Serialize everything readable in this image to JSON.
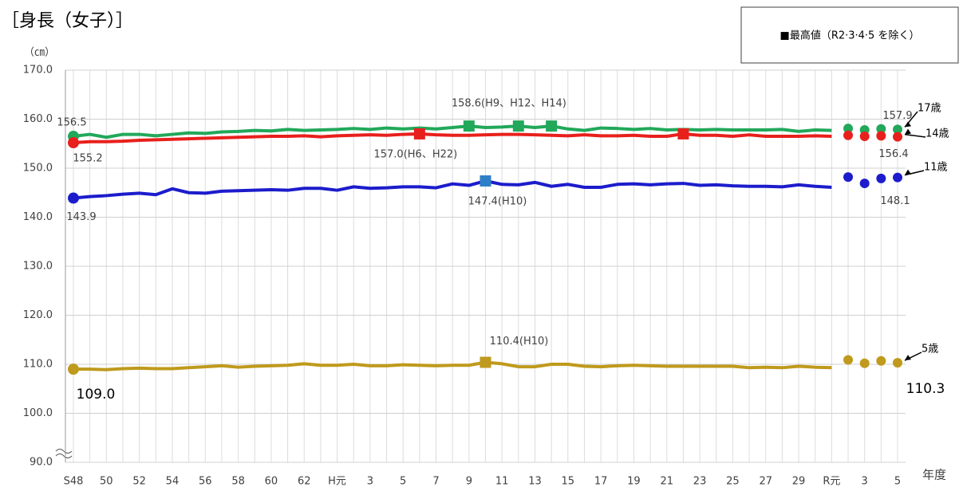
{
  "chart_data": {
    "type": "line",
    "title": "［身長（女子）］",
    "note": "■最高値（R2·3·4·5 を除く）",
    "y_unit": "（㎝）",
    "x_label": "年度",
    "categories": [
      "S48",
      null,
      "50",
      null,
      "52",
      null,
      "54",
      null,
      "56",
      null,
      "58",
      null,
      "60",
      null,
      "62",
      null,
      "H元",
      null,
      "3",
      null,
      "5",
      null,
      "7",
      null,
      "9",
      null,
      "11",
      null,
      "13",
      null,
      "15",
      null,
      "17",
      null,
      "19",
      null,
      "21",
      null,
      "23",
      null,
      "25",
      null,
      "27",
      null,
      "29",
      null,
      "R元",
      null,
      "3",
      null,
      "5"
    ],
    "ylim": [
      90,
      170
    ],
    "yticks": [
      {
        "value": 90,
        "label": "90.0"
      },
      {
        "value": 100,
        "label": "100.0"
      },
      {
        "value": 110,
        "label": "110.0"
      },
      {
        "value": 120,
        "label": "120.0"
      },
      {
        "value": 130,
        "label": "130.0"
      },
      {
        "value": 140,
        "label": "140.0"
      },
      {
        "value": 150,
        "label": "150.0"
      },
      {
        "value": 160,
        "label": "160.0"
      },
      {
        "value": 170,
        "label": "170.0"
      }
    ],
    "grid": true,
    "series": [
      {
        "name": "17歳",
        "color": "#22a85a",
        "style": "line",
        "max_label": "158.6(H9、H12、H14)",
        "values": [
          156.5,
          156.9,
          156.3,
          156.9,
          156.9,
          156.6,
          156.9,
          157.2,
          157.1,
          157.4,
          157.5,
          157.7,
          157.6,
          157.9,
          157.7,
          157.8,
          157.9,
          158.1,
          157.9,
          158.2,
          158.0,
          158.2,
          158.0,
          158.3,
          158.6,
          158.3,
          158.4,
          158.6,
          158.3,
          158.6,
          158.0,
          157.7,
          158.2,
          158.1,
          157.9,
          158.1,
          157.8,
          157.9,
          157.8,
          157.9,
          157.8,
          157.8,
          157.8,
          157.9,
          157.5,
          157.8,
          157.7,
          null,
          null,
          null,
          null
        ]
      },
      {
        "name": "14歳",
        "color": "#e8201c",
        "style": "line",
        "max_label": "157.0(H6、H22)",
        "values": [
          155.2,
          155.4,
          155.4,
          155.5,
          155.7,
          155.8,
          155.9,
          156.0,
          156.1,
          156.2,
          156.3,
          156.4,
          156.5,
          156.5,
          156.6,
          156.4,
          156.6,
          156.7,
          156.8,
          156.7,
          156.9,
          157.0,
          156.8,
          156.7,
          156.7,
          156.8,
          156.9,
          156.9,
          156.8,
          156.7,
          156.6,
          156.8,
          156.6,
          156.6,
          156.7,
          156.5,
          156.5,
          157.0,
          156.7,
          156.7,
          156.5,
          156.8,
          156.5,
          156.5,
          156.5,
          156.6,
          156.5,
          null,
          null,
          null,
          null
        ]
      },
      {
        "name": "11歳",
        "color": "#1c1ccc",
        "style": "line",
        "max_label": "147.4(H10)",
        "values": [
          143.9,
          144.2,
          144.4,
          144.7,
          144.9,
          144.6,
          145.8,
          145.0,
          144.9,
          145.3,
          145.4,
          145.5,
          145.6,
          145.5,
          145.9,
          145.9,
          145.5,
          146.2,
          145.9,
          146.0,
          146.2,
          146.2,
          146.0,
          146.8,
          146.5,
          147.4,
          146.7,
          146.6,
          147.1,
          146.3,
          146.7,
          146.1,
          146.1,
          146.7,
          146.8,
          146.6,
          146.8,
          146.9,
          146.5,
          146.6,
          146.4,
          146.3,
          146.3,
          146.2,
          146.6,
          146.3,
          146.1,
          null,
          null,
          null,
          null
        ]
      },
      {
        "name": "5歳",
        "color": "#bf9a1c",
        "style": "line",
        "max_label": "110.4(H10)",
        "values": [
          109.0,
          109.0,
          108.9,
          109.1,
          109.2,
          109.1,
          109.1,
          109.3,
          109.5,
          109.7,
          109.4,
          109.6,
          109.7,
          109.8,
          110.1,
          109.8,
          109.8,
          110.0,
          109.7,
          109.7,
          109.9,
          109.8,
          109.7,
          109.8,
          109.8,
          110.4,
          110.1,
          109.5,
          109.5,
          110.0,
          110.0,
          109.6,
          109.5,
          109.7,
          109.8,
          109.7,
          109.6,
          109.6,
          109.6,
          109.6,
          109.6,
          109.3,
          109.4,
          109.3,
          109.6,
          109.4,
          109.3,
          null,
          null,
          null,
          null
        ],
        "value_labels": [
          "109.0",
          null,
          null,
          null,
          null,
          null,
          null,
          null,
          null,
          null,
          null,
          null,
          null,
          null,
          null,
          null,
          null,
          null,
          null,
          null,
          null,
          null,
          null,
          null,
          null,
          null,
          null,
          null,
          null,
          null,
          null,
          null,
          null,
          null,
          null,
          null,
          null,
          null,
          null,
          null,
          null,
          null,
          null,
          null,
          null,
          null,
          null,
          null,
          null,
          null,
          null
        ]
      },
      {
        "color": "#22a85a",
        "style": "dots",
        "values": [
          null,
          null,
          null,
          null,
          null,
          null,
          null,
          null,
          null,
          null,
          null,
          null,
          null,
          null,
          null,
          null,
          null,
          null,
          null,
          null,
          null,
          null,
          null,
          null,
          null,
          null,
          null,
          null,
          null,
          null,
          null,
          null,
          null,
          null,
          null,
          null,
          null,
          null,
          null,
          null,
          null,
          null,
          null,
          null,
          null,
          null,
          null,
          158.1,
          157.8,
          158.0,
          157.9
        ]
      },
      {
        "color": "#e8201c",
        "style": "dots",
        "values": [
          null,
          null,
          null,
          null,
          null,
          null,
          null,
          null,
          null,
          null,
          null,
          null,
          null,
          null,
          null,
          null,
          null,
          null,
          null,
          null,
          null,
          null,
          null,
          null,
          null,
          null,
          null,
          null,
          null,
          null,
          null,
          null,
          null,
          null,
          null,
          null,
          null,
          null,
          null,
          null,
          null,
          null,
          null,
          null,
          null,
          null,
          null,
          156.7,
          156.5,
          156.6,
          156.4
        ]
      },
      {
        "color": "#1c1ccc",
        "style": "dots",
        "values": [
          null,
          null,
          null,
          null,
          null,
          null,
          null,
          null,
          null,
          null,
          null,
          null,
          null,
          null,
          null,
          null,
          null,
          null,
          null,
          null,
          null,
          null,
          null,
          null,
          null,
          null,
          null,
          null,
          null,
          null,
          null,
          null,
          null,
          null,
          null,
          null,
          null,
          null,
          null,
          null,
          null,
          null,
          null,
          null,
          null,
          null,
          null,
          148.2,
          146.9,
          147.9,
          148.1
        ]
      },
      {
        "color": "#bf9a1c",
        "style": "dots",
        "values": [
          null,
          null,
          null,
          null,
          null,
          null,
          null,
          null,
          null,
          null,
          null,
          null,
          null,
          null,
          null,
          null,
          null,
          null,
          null,
          null,
          null,
          null,
          null,
          null,
          null,
          null,
          null,
          null,
          null,
          null,
          null,
          null,
          null,
          null,
          null,
          null,
          null,
          null,
          null,
          null,
          null,
          null,
          null,
          null,
          null,
          null,
          null,
          110.9,
          110.2,
          110.7,
          110.3
        ]
      }
    ]
  }
}
